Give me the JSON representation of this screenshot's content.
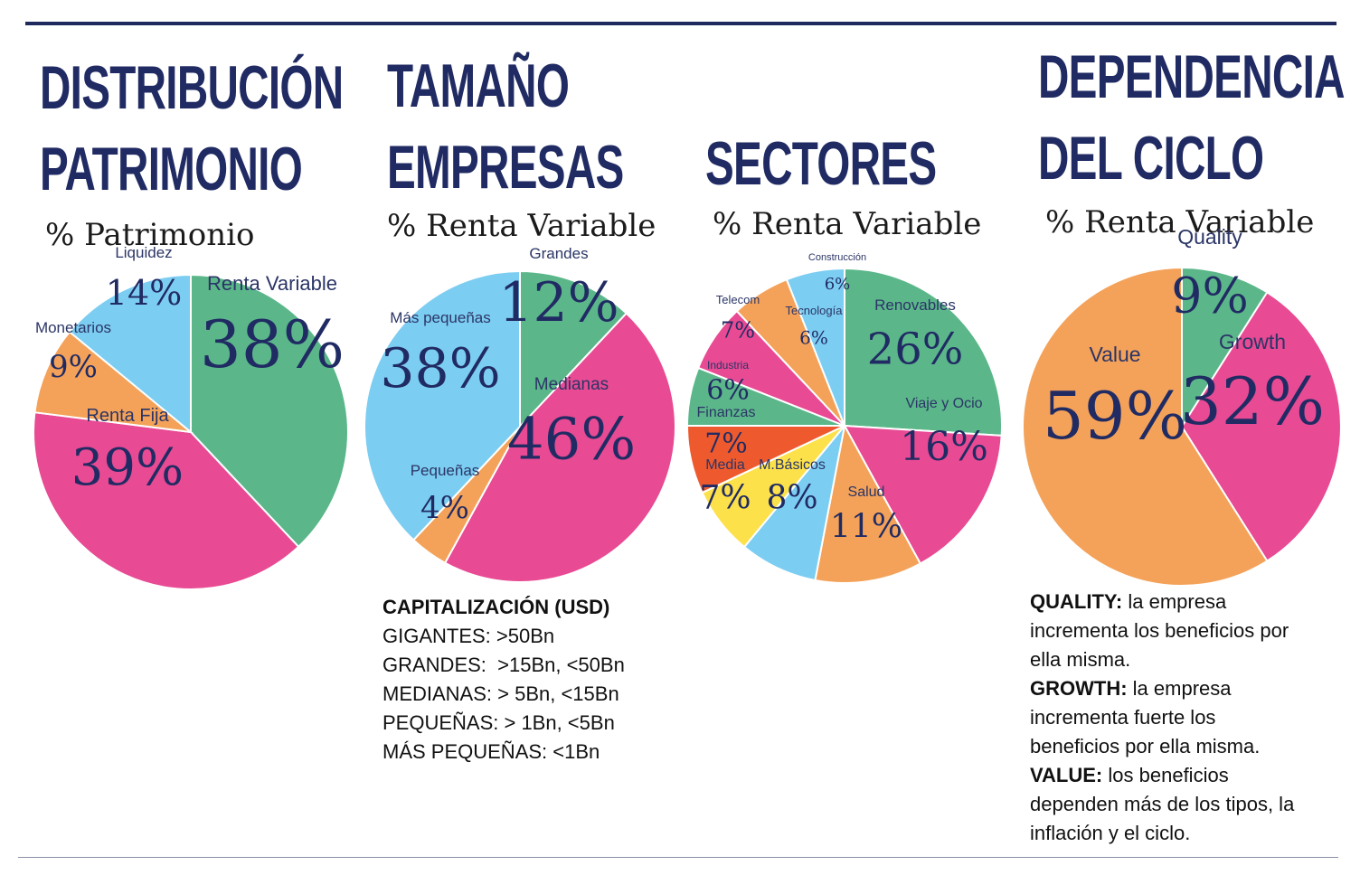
{
  "headings": {
    "patrimonio": {
      "line1": "DISTRIBUCIÓN",
      "line2": "PATRIMONIO",
      "sub": "% Patrimonio"
    },
    "tamano": {
      "line1": "TAMAÑO",
      "line2": "EMPRESAS",
      "sub": "% Renta Variable"
    },
    "sectores": {
      "line1": "SECTORES",
      "sub": "% Renta Variable"
    },
    "ciclo": {
      "line1": "DEPENDENCIA",
      "line2": "DEL CICLO",
      "sub": "% Renta Variable"
    }
  },
  "capitalizacion": {
    "title": "CAPITALIZACIÓN (USD)",
    "lines": [
      "GIGANTES: >50Bn",
      "GRANDES:  >15Bn, <50Bn",
      "MEDIANAS: > 5Bn, <15Bn",
      "PEQUEÑAS: > 1Bn, <5Bn",
      "MÁS PEQUEÑAS: <1Bn"
    ]
  },
  "definiciones": {
    "quality_head": "QUALITY:",
    "quality_text": "la empresa",
    "quality_l2": "incrementa los beneficios por",
    "quality_l3": "ella misma.",
    "growth_head": "GROWTH:",
    "growth_text": "la empresa",
    "growth_l2": "incrementa fuerte los",
    "growth_l3": "beneficios por ella misma.",
    "value_head": "VALUE:",
    "value_text": "los beneficios",
    "value_l2": "dependen más de los tipos, la",
    "value_l3": "inflación y el ciclo."
  },
  "chart_data": [
    {
      "type": "pie",
      "title": "DISTRIBUCIÓN PATRIMONIO",
      "subtitle": "% Patrimonio",
      "slices": [
        {
          "label": "Renta Variable",
          "value": 38,
          "text": "38%",
          "color": "#5bb78a"
        },
        {
          "label": "Renta Fija",
          "value": 39,
          "text": "39%",
          "color": "#e84a93"
        },
        {
          "label": "Monetarios",
          "value": 9,
          "text": "9%",
          "color": "#f4a259"
        },
        {
          "label": "Liquidez",
          "value": 14,
          "text": "14%",
          "color": "#7ccdf2"
        }
      ]
    },
    {
      "type": "pie",
      "title": "TAMAÑO EMPRESAS",
      "subtitle": "% Renta Variable",
      "slices": [
        {
          "label": "Grandes",
          "value": 12,
          "text": "12%",
          "color": "#5bb78a"
        },
        {
          "label": "Medianas",
          "value": 46,
          "text": "46%",
          "color": "#e84a93"
        },
        {
          "label": "Pequeñas",
          "value": 4,
          "text": "4%",
          "color": "#f4a259"
        },
        {
          "label": "Más pequeñas",
          "value": 38,
          "text": "38%",
          "color": "#7ccdf2"
        }
      ]
    },
    {
      "type": "pie",
      "title": "SECTORES",
      "subtitle": "% Renta Variable",
      "slices": [
        {
          "label": "Renovables",
          "value": 26,
          "text": "26%",
          "color": "#5bb78a"
        },
        {
          "label": "Viaje y Ocio",
          "value": 16,
          "text": "16%",
          "color": "#e84a93"
        },
        {
          "label": "Salud",
          "value": 11,
          "text": "11%",
          "color": "#f4a259"
        },
        {
          "label": "M.Básicos",
          "value": 8,
          "text": "8%",
          "color": "#7ccdf2"
        },
        {
          "label": "Media",
          "value": 7,
          "text": "7%",
          "color": "#fce14b"
        },
        {
          "label": "Finanzas",
          "value": 7,
          "text": "7%",
          "color": "#ee5a2e"
        },
        {
          "label": "Industria",
          "value": 6,
          "text": "6%",
          "color": "#5bb78a"
        },
        {
          "label": "Telecom",
          "value": 7,
          "text": "7%",
          "color": "#e84a93"
        },
        {
          "label": "Tecnología",
          "value": 6,
          "text": "6%",
          "color": "#f4a259"
        },
        {
          "label": "Construcción",
          "value": 6,
          "text": "6%",
          "color": "#7ccdf2"
        }
      ]
    },
    {
      "type": "pie",
      "title": "DEPENDENCIA DEL CICLO",
      "subtitle": "% Renta Variable",
      "slices": [
        {
          "label": "Quality",
          "value": 9,
          "text": "9%",
          "color": "#5bb78a"
        },
        {
          "label": "Growth",
          "value": 32,
          "text": "32%",
          "color": "#e84a93"
        },
        {
          "label": "Value",
          "value": 59,
          "text": "59%",
          "color": "#f4a259"
        }
      ]
    }
  ]
}
